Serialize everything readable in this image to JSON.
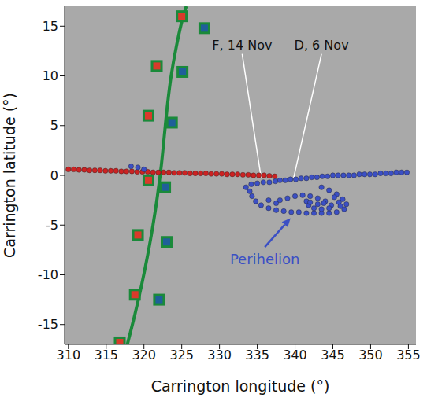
{
  "chart_data": {
    "type": "scatter",
    "x_label": "Carrington longitude (°)",
    "y_label": "Carrington latitude (°)",
    "xlim": [
      309.5,
      356
    ],
    "ylim": [
      -17,
      17
    ],
    "xticks": [
      310,
      315,
      320,
      325,
      330,
      335,
      340,
      345,
      350,
      355
    ],
    "yticks": [
      -15,
      -10,
      -5,
      0,
      5,
      10,
      15
    ],
    "grid": false,
    "series": [
      {
        "type": "line",
        "color": "#1a8a3a",
        "line_style": "solid",
        "x": [
          317.8,
          318.8,
          319.7,
          320.5,
          321.2,
          321.8,
          322.3,
          322.7,
          323.1,
          323.6,
          324.3,
          325.2,
          325.6
        ],
        "y": [
          -17,
          -14,
          -11,
          -8,
          -5,
          -2,
          1,
          4,
          7,
          10,
          13,
          16,
          17
        ]
      },
      {
        "type": "scatter",
        "color": "#cc2222",
        "marker": "circle",
        "x": [
          310,
          310.7,
          311.4,
          312.1,
          312.8,
          313.5,
          314.2,
          314.9,
          315.6,
          316.3,
          317,
          317.7,
          318.4,
          319.1,
          319.8,
          320.5,
          321.2,
          321.9,
          322.6,
          323.3,
          324,
          324.7,
          325.4,
          326.1,
          326.8,
          327.5,
          328.2,
          328.9,
          329.6,
          330.3,
          331,
          331.7,
          332.4,
          333.1,
          333.8,
          334.5,
          335.2,
          335.9,
          336.6,
          337.3
        ],
        "y": [
          0.6,
          0.6,
          0.55,
          0.55,
          0.5,
          0.5,
          0.5,
          0.45,
          0.45,
          0.45,
          0.4,
          0.4,
          0.4,
          0.35,
          0.35,
          0.35,
          0.3,
          0.3,
          0.3,
          0.3,
          0.25,
          0.25,
          0.25,
          0.2,
          0.2,
          0.2,
          0.2,
          0.15,
          0.15,
          0.15,
          0.1,
          0.1,
          0.1,
          0.05,
          0.05,
          0,
          0,
          0,
          -0.05,
          -0.1
        ]
      },
      {
        "type": "scatter",
        "color": "#3b4fc4",
        "marker": "circle",
        "x": [
          318.3,
          319.2,
          320,
          338,
          338.7,
          339.4,
          340.1,
          340.8,
          341.5,
          342.2,
          342.9,
          343.6,
          344.3,
          345,
          345.7,
          346.4,
          347.1,
          347.8,
          348.5,
          349.2,
          349.9,
          350.6,
          351.3,
          352,
          352.7,
          353.4,
          354.1,
          354.8,
          333.5,
          334.2,
          335,
          335.8,
          336.6,
          337.4,
          343.5,
          344.5,
          345.5,
          346.3,
          346.8,
          346.5,
          345.5,
          344.5,
          343.5,
          342.5,
          341.5,
          340.5,
          339.5,
          338.5,
          337.5,
          336.5,
          335.5,
          334.8,
          334.3,
          334,
          339,
          340,
          341,
          342,
          343,
          344,
          344.8,
          344.5,
          343.5,
          342.5,
          341.8,
          341.5,
          342,
          343,
          343.8,
          345.2,
          345.8,
          346,
          337.5,
          336.5,
          338
        ],
        "y": [
          0.9,
          0.8,
          0.6,
          -0.5,
          -0.5,
          -0.4,
          -0.4,
          -0.3,
          -0.3,
          -0.2,
          -0.2,
          -0.1,
          -0.1,
          0,
          0,
          0,
          0,
          0,
          0.1,
          0.1,
          0.1,
          0.1,
          0.2,
          0.2,
          0.2,
          0.3,
          0.3,
          0.3,
          -1.2,
          -0.9,
          -0.8,
          -0.7,
          -0.7,
          -0.6,
          -1.2,
          -1.5,
          -1.9,
          -2.4,
          -2.9,
          -3.4,
          -3.7,
          -3.8,
          -3.8,
          -3.8,
          -3.8,
          -3.7,
          -3.7,
          -3.6,
          -3.5,
          -3.3,
          -3,
          -2.6,
          -2.1,
          -1.6,
          -2.3,
          -2.1,
          -2,
          -2.1,
          -2.3,
          -2.6,
          -3,
          -3.3,
          -3.4,
          -3.3,
          -3,
          -2.6,
          -2.7,
          -2.9,
          -2.8,
          -2.2,
          -2.7,
          -3.1,
          -2.8,
          -2.5,
          -2.5
        ]
      },
      {
        "type": "scatter",
        "color": "#d93a2b",
        "marker": "square",
        "x": [
          325,
          321.7,
          320.6,
          320.6,
          319.2,
          318.8,
          316.8
        ],
        "y": [
          16,
          11,
          6,
          -0.5,
          -6,
          -12,
          -16.8
        ]
      },
      {
        "type": "scatter",
        "color": "#1f5f9a",
        "marker": "square",
        "x": [
          328,
          325.1,
          323.7,
          322.8,
          323,
          322
        ],
        "y": [
          14.8,
          10.4,
          5.3,
          -1.2,
          -6.7,
          -12.5
        ]
      }
    ],
    "annotations": [
      {
        "text": "F, 14 Nov",
        "x": 333,
        "y": 12.2,
        "to": [
          335.5,
          -0.2
        ],
        "color": "#111111",
        "line_style": "solid"
      },
      {
        "text": "D, 6 Nov",
        "x": 343.5,
        "y": 12.2,
        "to": [
          339.8,
          -0.3
        ],
        "color": "#111111",
        "line_style": "solid"
      },
      {
        "text": "Perihelion",
        "x": 336,
        "y": -7.2,
        "to": [
          339.4,
          -4.3
        ],
        "color": "#3b4fc4",
        "line_style": "arrow"
      }
    ]
  }
}
